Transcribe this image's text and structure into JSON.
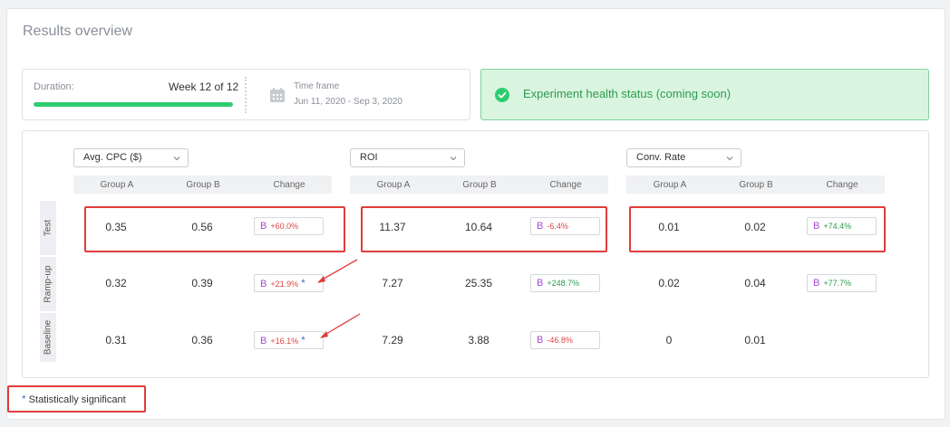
{
  "title": "Results overview",
  "duration": {
    "label": "Duration:",
    "value": "Week 12 of 12",
    "progress": 1.0
  },
  "timeframe": {
    "label": "Time frame",
    "value": "Jun 11, 2020 - Sep 3, 2020"
  },
  "health": {
    "text": "Experiment health status (coming soon)"
  },
  "metrics": [
    {
      "label": "Avg. CPC ($)"
    },
    {
      "label": "ROI"
    },
    {
      "label": "Conv. Rate"
    }
  ],
  "columns": {
    "group_a": "Group A",
    "group_b": "Group B",
    "change": "Change"
  },
  "rows": [
    {
      "label": "Test",
      "cells": [
        {
          "a": "0.35",
          "b": "0.56",
          "badge": "B",
          "change": "+60.0%"
        },
        {
          "a": "11.37",
          "b": "10.64",
          "badge": "B",
          "change": "-6.4%"
        },
        {
          "a": "0.01",
          "b": "0.02",
          "badge": "B",
          "change": "+74.4%"
        }
      ]
    },
    {
      "label": "Ramp-up",
      "cells": [
        {
          "a": "0.32",
          "b": "0.39",
          "badge": "B",
          "change": "+21.9%",
          "star": "*"
        },
        {
          "a": "7.27",
          "b": "25.35",
          "badge": "B",
          "change": "+248.7%"
        },
        {
          "a": "0.02",
          "b": "0.04",
          "badge": "B",
          "change": "+77.7%"
        }
      ]
    },
    {
      "label": "Baseline",
      "cells": [
        {
          "a": "0.31",
          "b": "0.36",
          "badge": "B",
          "change": "+16.1%",
          "star": "*"
        },
        {
          "a": "7.29",
          "b": "3.88",
          "badge": "B",
          "change": "-46.8%"
        },
        {
          "a": "0",
          "b": "0.01"
        }
      ]
    }
  ],
  "legend": {
    "star": "*",
    "text": "Statistically significant"
  },
  "colors": {
    "success": "#2ecc71",
    "negative": "#e04545",
    "positive": "#2e9b4f",
    "badge": "#a54bd6",
    "highlight": "#e03c3c"
  },
  "icons": [
    "calendar-icon",
    "check-circle-icon",
    "chevron-down-icon"
  ]
}
